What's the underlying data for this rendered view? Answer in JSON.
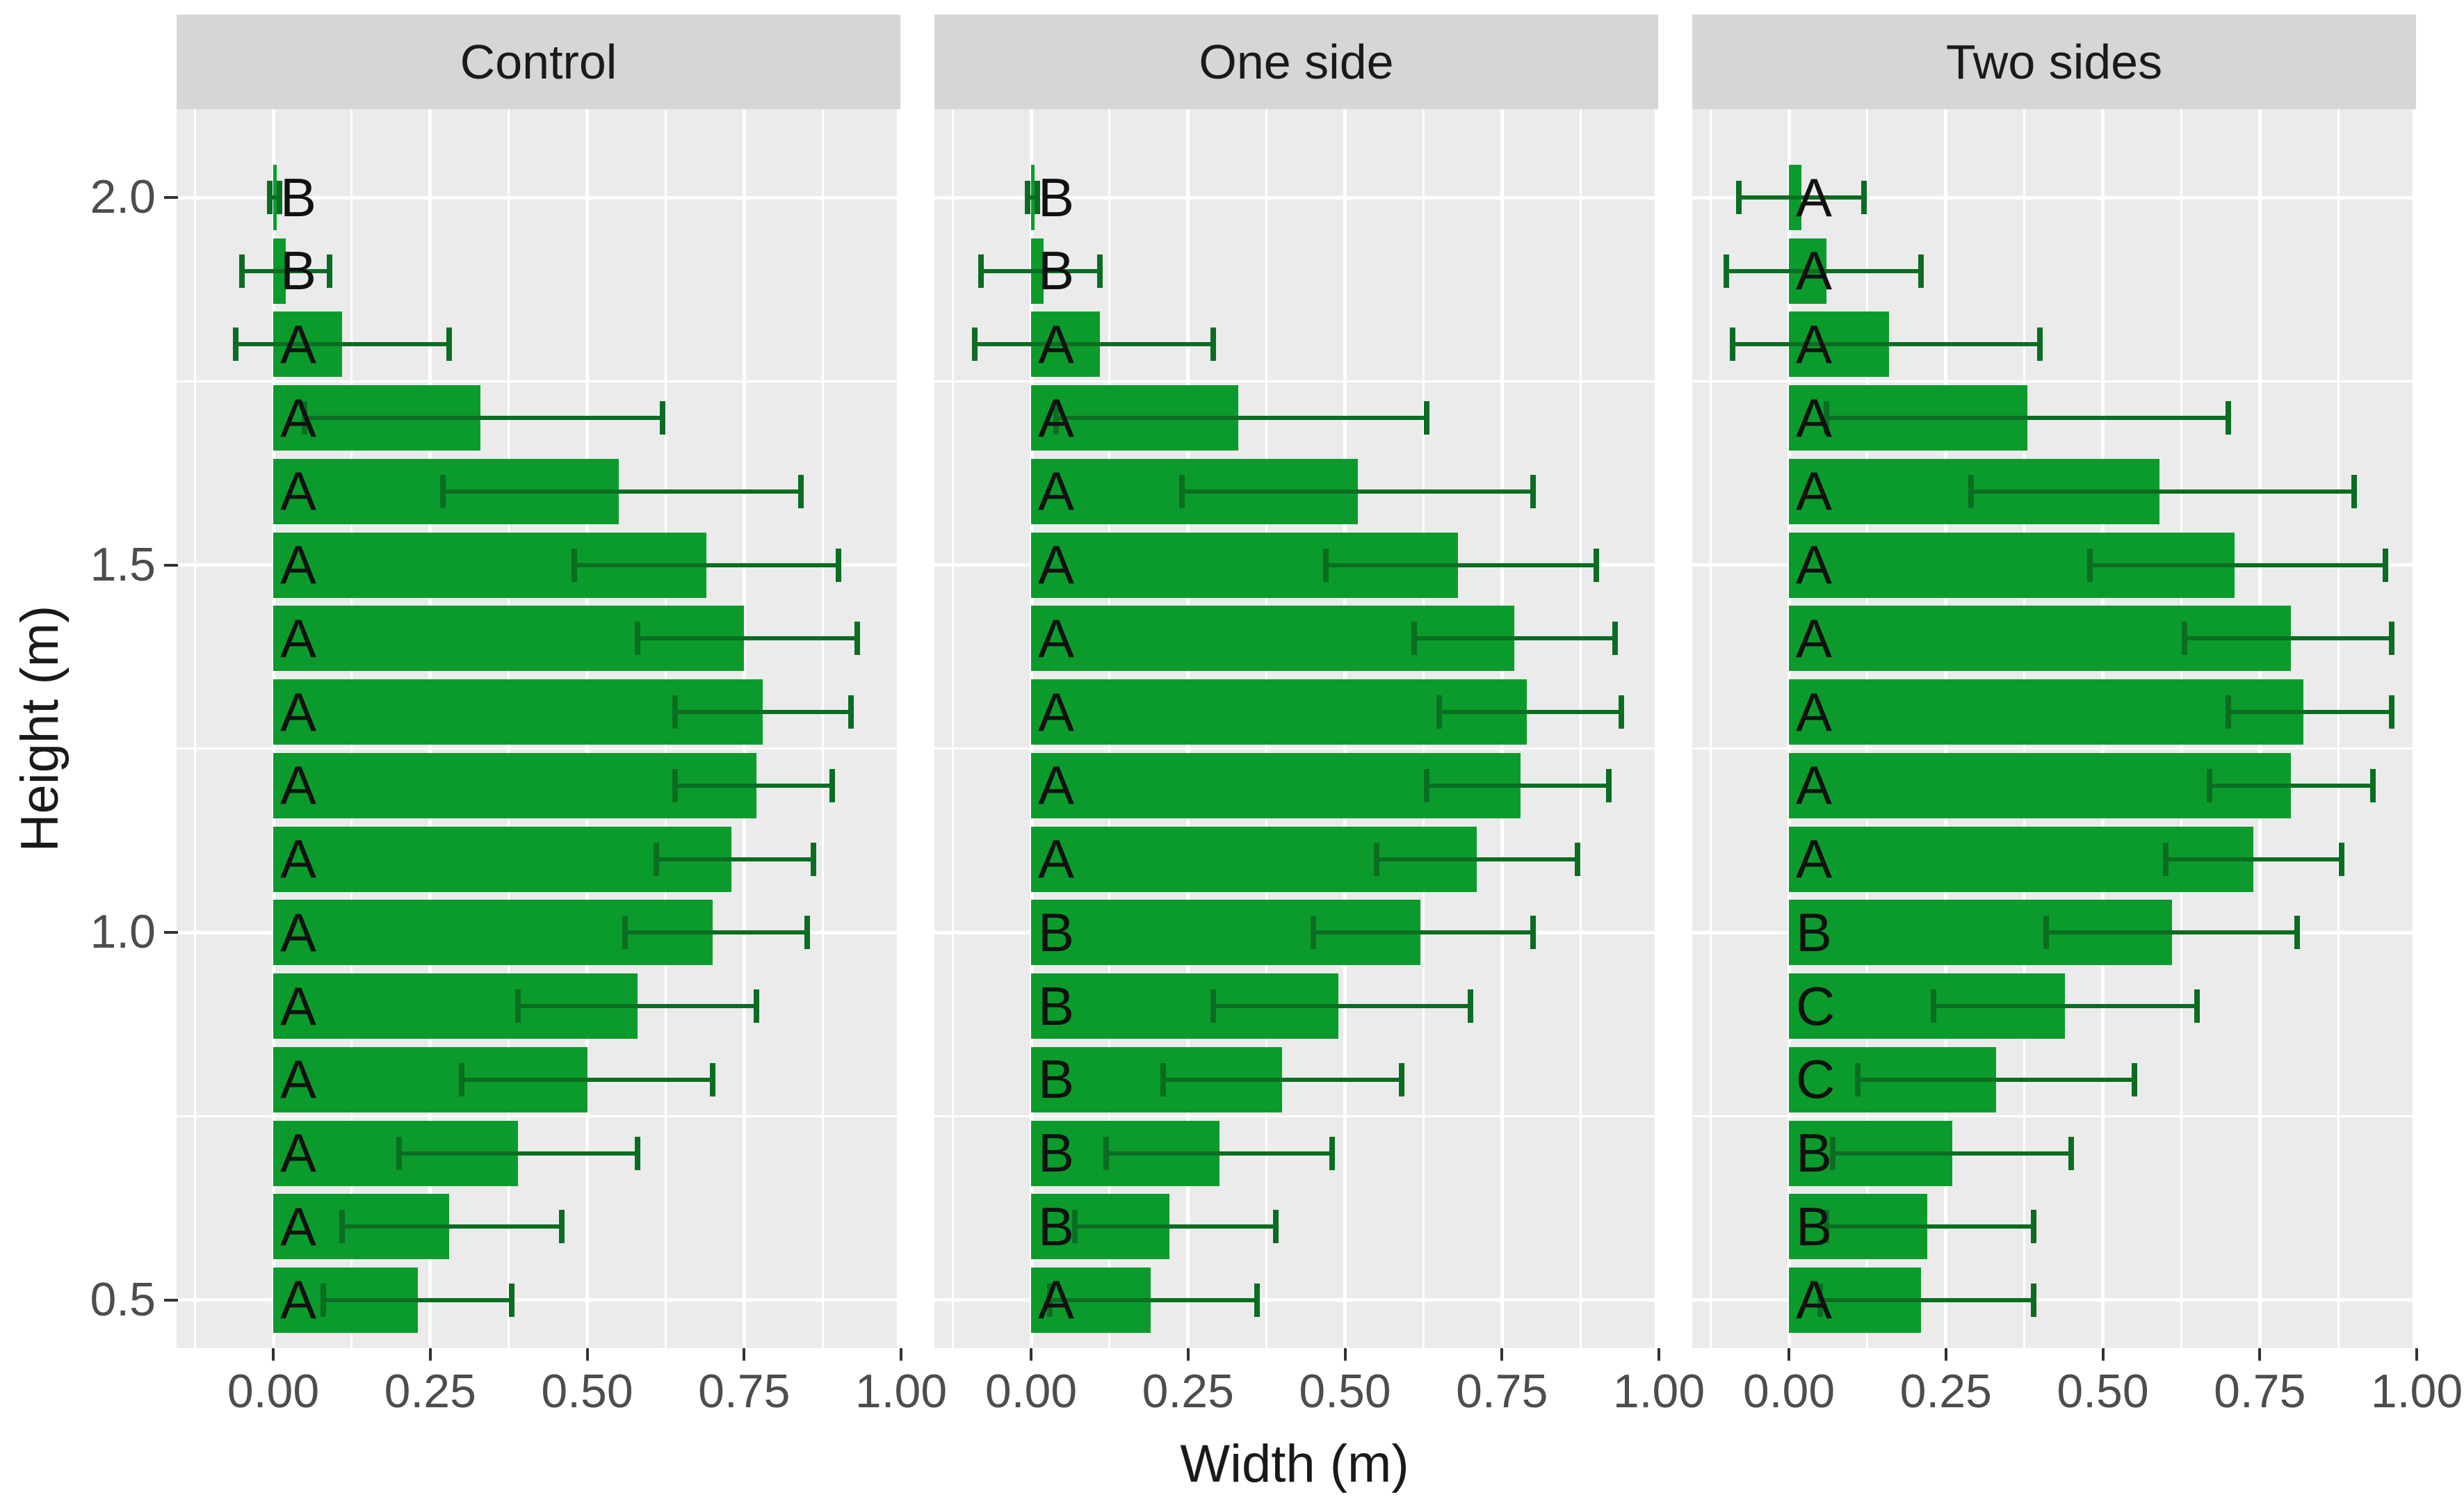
{
  "figure": {
    "xlabel": "Width (m)",
    "ylabel": "Height (m)"
  },
  "colors": {
    "bar_fill": "#0B9B2D",
    "error_bar": "#0B6D22",
    "panel_bg": "#EBEBEB",
    "strip_bg": "#D6D6D6",
    "gridline": "#FFFFFF",
    "tick_mark": "#333333",
    "tick_label": "#4D4D4D",
    "axis_title": "#1A1A1A",
    "letter_label": "#111111"
  },
  "chart_data": {
    "type": "bar",
    "orientation": "horizontal",
    "title": "",
    "xlabel": "Width (m)",
    "ylabel": "Height (m)",
    "xlim": [
      -0.155,
      1.0
    ],
    "ylim": [
      0.435,
      2.12
    ],
    "grid": "on",
    "x_tick_labels": [
      "0.00",
      "0.25",
      "0.50",
      "0.75",
      "1.00"
    ],
    "x_tick_values": [
      0,
      0.25,
      0.5,
      0.75,
      1.0
    ],
    "x_minor_gridlines": [
      -0.125,
      0.125,
      0.375,
      0.625,
      0.875
    ],
    "y_tick_labels": [
      "2.0",
      "1.5",
      "1.0",
      "0.5"
    ],
    "y_tick_values": [
      2.0,
      1.5,
      1.0,
      0.5
    ],
    "y_minor_gridlines": [
      1.75,
      1.25,
      0.75
    ],
    "row_columns": [
      "height_m",
      "width_m",
      "ci_low",
      "ci_high",
      "letter"
    ],
    "facets": [
      {
        "label": "Control",
        "rows": [
          [
            2.0,
            0.005,
            -0.005,
            0.01,
            "B"
          ],
          [
            1.9,
            0.02,
            -0.05,
            0.09,
            "B"
          ],
          [
            1.8,
            0.11,
            -0.06,
            0.28,
            "A"
          ],
          [
            1.7,
            0.33,
            0.05,
            0.62,
            "A"
          ],
          [
            1.6,
            0.55,
            0.27,
            0.84,
            "A"
          ],
          [
            1.5,
            0.69,
            0.48,
            0.9,
            "A"
          ],
          [
            1.4,
            0.75,
            0.58,
            0.93,
            "A"
          ],
          [
            1.3,
            0.78,
            0.64,
            0.92,
            "A"
          ],
          [
            1.2,
            0.77,
            0.64,
            0.89,
            "A"
          ],
          [
            1.1,
            0.73,
            0.61,
            0.86,
            "A"
          ],
          [
            1.0,
            0.7,
            0.56,
            0.85,
            "A"
          ],
          [
            0.9,
            0.58,
            0.39,
            0.77,
            "A"
          ],
          [
            0.8,
            0.5,
            0.3,
            0.7,
            "A"
          ],
          [
            0.7,
            0.39,
            0.2,
            0.58,
            "A"
          ],
          [
            0.6,
            0.28,
            0.11,
            0.46,
            "A"
          ],
          [
            0.5,
            0.23,
            0.08,
            0.38,
            "A"
          ]
        ]
      },
      {
        "label": "One side",
        "rows": [
          [
            2.0,
            0.005,
            -0.005,
            0.01,
            "B"
          ],
          [
            1.9,
            0.02,
            -0.08,
            0.11,
            "B"
          ],
          [
            1.8,
            0.11,
            -0.09,
            0.29,
            "A"
          ],
          [
            1.7,
            0.33,
            0.04,
            0.63,
            "A"
          ],
          [
            1.6,
            0.52,
            0.24,
            0.8,
            "A"
          ],
          [
            1.5,
            0.68,
            0.47,
            0.9,
            "A"
          ],
          [
            1.4,
            0.77,
            0.61,
            0.93,
            "A"
          ],
          [
            1.3,
            0.79,
            0.65,
            0.94,
            "A"
          ],
          [
            1.2,
            0.78,
            0.63,
            0.92,
            "A"
          ],
          [
            1.1,
            0.71,
            0.55,
            0.87,
            "A"
          ],
          [
            1.0,
            0.62,
            0.45,
            0.8,
            "B"
          ],
          [
            0.9,
            0.49,
            0.29,
            0.7,
            "B"
          ],
          [
            0.8,
            0.4,
            0.21,
            0.59,
            "B"
          ],
          [
            0.7,
            0.3,
            0.12,
            0.48,
            "B"
          ],
          [
            0.6,
            0.22,
            0.07,
            0.39,
            "B"
          ],
          [
            0.5,
            0.19,
            0.03,
            0.36,
            "A"
          ]
        ]
      },
      {
        "label": "Two sides",
        "rows": [
          [
            2.0,
            0.02,
            -0.08,
            0.12,
            "A"
          ],
          [
            1.9,
            0.06,
            -0.1,
            0.21,
            "A"
          ],
          [
            1.8,
            0.16,
            -0.09,
            0.4,
            "A"
          ],
          [
            1.7,
            0.38,
            0.06,
            0.7,
            "A"
          ],
          [
            1.6,
            0.59,
            0.29,
            0.9,
            "A"
          ],
          [
            1.5,
            0.71,
            0.48,
            0.95,
            "A"
          ],
          [
            1.4,
            0.8,
            0.63,
            0.96,
            "A"
          ],
          [
            1.3,
            0.82,
            0.7,
            0.96,
            "A"
          ],
          [
            1.2,
            0.8,
            0.67,
            0.93,
            "A"
          ],
          [
            1.1,
            0.74,
            0.6,
            0.88,
            "A"
          ],
          [
            1.0,
            0.61,
            0.41,
            0.81,
            "B"
          ],
          [
            0.9,
            0.44,
            0.23,
            0.65,
            "C"
          ],
          [
            0.8,
            0.33,
            0.11,
            0.55,
            "C"
          ],
          [
            0.7,
            0.26,
            0.07,
            0.45,
            "B"
          ],
          [
            0.6,
            0.22,
            0.06,
            0.39,
            "B"
          ],
          [
            0.5,
            0.21,
            0.05,
            0.39,
            "A"
          ]
        ]
      }
    ]
  }
}
